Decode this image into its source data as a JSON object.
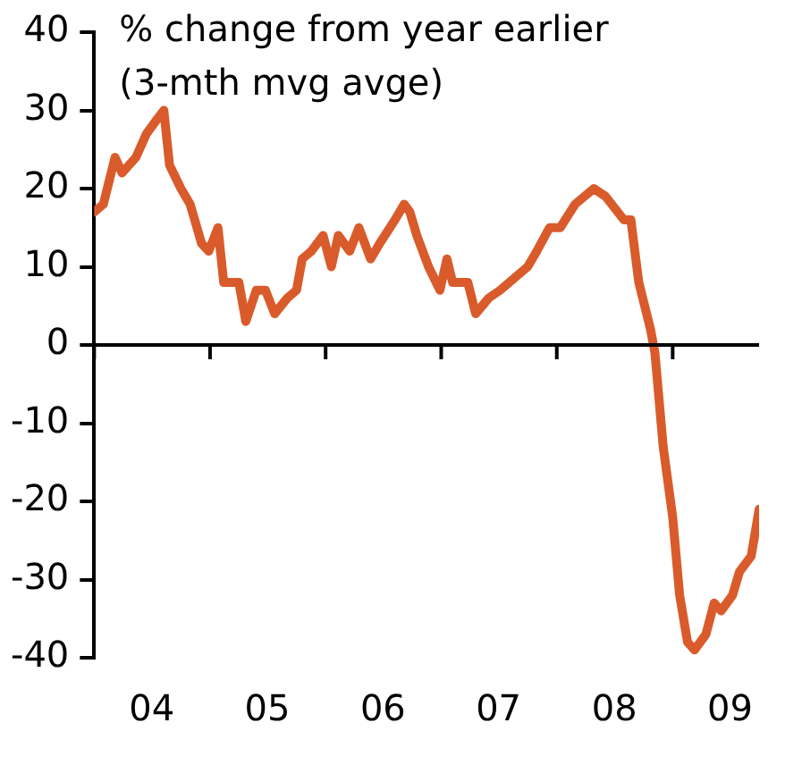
{
  "chart_data": {
    "type": "line",
    "title": "% change from year earlier\n(3-mth mvg avge)",
    "x": [
      "2004-01-01",
      "2004-01-30",
      "2004-03-07",
      "2004-03-29",
      "2004-05-12",
      "2004-06-14",
      "2004-07-20",
      "2004-08-08",
      "2004-08-26",
      "2004-10-01",
      "2004-10-30",
      "2004-12-05",
      "2004-12-28",
      "2005-01-26",
      "2005-02-13",
      "2005-03-11",
      "2005-04-02",
      "2005-04-24",
      "2005-05-27",
      "2005-06-25",
      "2005-07-24",
      "2005-09-02",
      "2005-10-01",
      "2005-10-19",
      "2005-11-17",
      "2005-12-24",
      "2006-01-19",
      "2006-02-10",
      "2006-03-18",
      "2006-04-16",
      "2006-05-23",
      "2006-06-21",
      "2006-08-08",
      "2006-09-06",
      "2006-09-24",
      "2006-10-16",
      "2006-11-22",
      "2006-12-28",
      "2007-01-19",
      "2007-02-06",
      "2007-03-26",
      "2007-04-20",
      "2007-05-31",
      "2007-07-06",
      "2007-09-02",
      "2007-10-01",
      "2007-10-30",
      "2007-12-09",
      "2008-01-12",
      "2008-02-28",
      "2008-04-27",
      "2008-06-03",
      "2008-07-31",
      "2008-08-22",
      "2008-09-16",
      "2008-10-23",
      "2008-11-06",
      "2008-12-02",
      "2009-01-01",
      "2009-01-23",
      "2009-02-17",
      "2009-03-11",
      "2009-04-16",
      "2009-05-12",
      "2009-06-03",
      "2009-07-09",
      "2009-07-31",
      "2009-09-06",
      "2009-10-01"
    ],
    "series": [
      {
        "color": "#d95b2b",
        "values": [
          17,
          18,
          24,
          22,
          24,
          27,
          29,
          30,
          23,
          20,
          18,
          13,
          12,
          15,
          8,
          8,
          8,
          3,
          7,
          7,
          4,
          6,
          7,
          11,
          12,
          14,
          10,
          14,
          12,
          15,
          11,
          13,
          16,
          18,
          17,
          14,
          10,
          7,
          11,
          8,
          8,
          4,
          6,
          7,
          9,
          10,
          12,
          15,
          15,
          18,
          20,
          19,
          16,
          16,
          8,
          2,
          -1,
          -13,
          -22,
          -32,
          -38,
          -39,
          -37,
          -33,
          -34,
          -32,
          -29,
          -27,
          -21
        ]
      }
    ],
    "xlim": [
      "2004-01-01",
      "2009-10-01"
    ],
    "ref_lines": [
      {
        "axis": "y",
        "value": 0,
        "color": "#000000"
      }
    ],
    "xticks": [
      {
        "value": "2004-01",
        "label": null
      },
      {
        "value": "2004-07",
        "label": "04"
      },
      {
        "value": "2005-01",
        "label": null
      },
      {
        "value": "2005-07",
        "label": "05"
      },
      {
        "value": "2006-01",
        "label": null
      },
      {
        "value": "2006-07",
        "label": "06"
      },
      {
        "value": "2007-01",
        "label": null
      },
      {
        "value": "2007-07",
        "label": "07"
      },
      {
        "value": "2008-01",
        "label": null
      },
      {
        "value": "2008-07",
        "label": "08"
      },
      {
        "value": "2009-01",
        "label": null
      },
      {
        "value": "2009-07",
        "label": "09"
      }
    ],
    "ylim": [
      -40,
      40
    ],
    "yticks": [
      -40,
      -30,
      -20,
      -10,
      0,
      10,
      20,
      30,
      40
    ],
    "grid": false,
    "legend": false,
    "marker": "none",
    "line_style": "solid"
  }
}
